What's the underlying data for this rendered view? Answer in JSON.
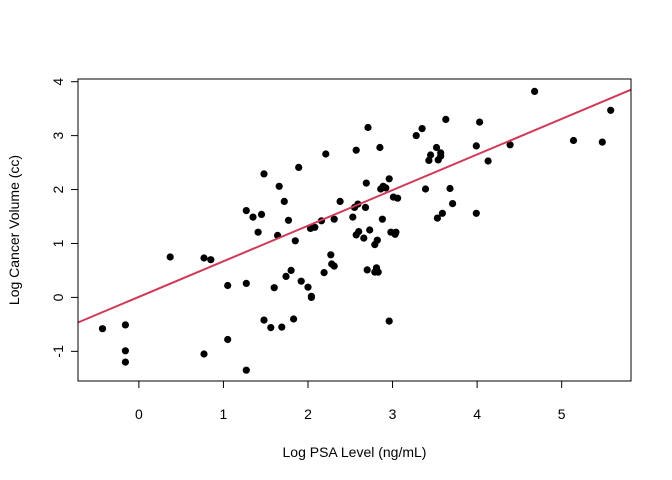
{
  "chart_data": {
    "type": "scatter",
    "title": "",
    "xlabel": "Log PSA Level (ng/mL)",
    "ylabel": "Log Cancer Volume (cc)",
    "xlim": [
      -0.72,
      5.82
    ],
    "ylim": [
      -1.55,
      4.05
    ],
    "grid": false,
    "legend": "none",
    "x_ticks": [
      0,
      1,
      2,
      3,
      4,
      5
    ],
    "y_ticks": [
      -1,
      0,
      1,
      2,
      3,
      4
    ],
    "x_tick_labels": [
      "0",
      "1",
      "2",
      "3",
      "4",
      "5"
    ],
    "y_tick_labels": [
      "-1",
      "0",
      "1",
      "2",
      "3",
      "4"
    ],
    "point_color": "#000000",
    "line_color": "#d03a57",
    "regression_line": {
      "intercept": 0.01,
      "slope": 0.66
    },
    "points": [
      {
        "x": -0.43,
        "y": -0.58
      },
      {
        "x": -0.16,
        "y": -0.51
      },
      {
        "x": -0.16,
        "y": -0.99
      },
      {
        "x": -0.16,
        "y": -1.2
      },
      {
        "x": 0.37,
        "y": 0.75
      },
      {
        "x": 0.77,
        "y": 0.73
      },
      {
        "x": 0.85,
        "y": 0.7
      },
      {
        "x": 0.77,
        "y": -1.05
      },
      {
        "x": 1.05,
        "y": 0.22
      },
      {
        "x": 1.05,
        "y": -0.78
      },
      {
        "x": 1.27,
        "y": 1.61
      },
      {
        "x": 1.35,
        "y": 1.49
      },
      {
        "x": 1.27,
        "y": 0.26
      },
      {
        "x": 1.27,
        "y": -1.35
      },
      {
        "x": 1.41,
        "y": 1.21
      },
      {
        "x": 1.45,
        "y": 1.54
      },
      {
        "x": 1.48,
        "y": 2.29
      },
      {
        "x": 1.48,
        "y": -0.42
      },
      {
        "x": 1.56,
        "y": -0.56
      },
      {
        "x": 1.6,
        "y": 0.18
      },
      {
        "x": 1.64,
        "y": 1.15
      },
      {
        "x": 1.66,
        "y": 2.06
      },
      {
        "x": 1.69,
        "y": -0.55
      },
      {
        "x": 1.72,
        "y": 1.78
      },
      {
        "x": 1.74,
        "y": 0.39
      },
      {
        "x": 1.77,
        "y": 1.43
      },
      {
        "x": 1.8,
        "y": 0.5
      },
      {
        "x": 1.83,
        "y": -0.4
      },
      {
        "x": 1.85,
        "y": 1.05
      },
      {
        "x": 1.89,
        "y": 2.41
      },
      {
        "x": 1.92,
        "y": 0.3
      },
      {
        "x": 2.0,
        "y": 0.19
      },
      {
        "x": 2.03,
        "y": 1.28
      },
      {
        "x": 2.04,
        "y": 0.0
      },
      {
        "x": 2.04,
        "y": 0.02
      },
      {
        "x": 2.08,
        "y": 1.3
      },
      {
        "x": 2.16,
        "y": 1.42
      },
      {
        "x": 2.19,
        "y": 0.46
      },
      {
        "x": 2.21,
        "y": 2.66
      },
      {
        "x": 2.27,
        "y": 0.79
      },
      {
        "x": 2.28,
        "y": 0.62
      },
      {
        "x": 2.31,
        "y": 1.45
      },
      {
        "x": 2.31,
        "y": 0.58
      },
      {
        "x": 2.38,
        "y": 1.78
      },
      {
        "x": 2.53,
        "y": 1.49
      },
      {
        "x": 2.55,
        "y": 1.67
      },
      {
        "x": 2.57,
        "y": 1.16
      },
      {
        "x": 2.57,
        "y": 2.73
      },
      {
        "x": 2.59,
        "y": 1.73
      },
      {
        "x": 2.6,
        "y": 1.22
      },
      {
        "x": 2.66,
        "y": 1.1
      },
      {
        "x": 2.68,
        "y": 1.67
      },
      {
        "x": 2.69,
        "y": 2.12
      },
      {
        "x": 2.7,
        "y": 0.51
      },
      {
        "x": 2.71,
        "y": 3.15
      },
      {
        "x": 2.73,
        "y": 1.25
      },
      {
        "x": 2.79,
        "y": 0.98
      },
      {
        "x": 2.79,
        "y": 0.47
      },
      {
        "x": 2.81,
        "y": 0.55
      },
      {
        "x": 2.82,
        "y": 1.06
      },
      {
        "x": 2.83,
        "y": 0.47
      },
      {
        "x": 2.85,
        "y": 2.78
      },
      {
        "x": 2.86,
        "y": 2.01
      },
      {
        "x": 2.88,
        "y": 1.45
      },
      {
        "x": 2.89,
        "y": 2.06
      },
      {
        "x": 2.92,
        "y": 2.03
      },
      {
        "x": 2.96,
        "y": -0.44
      },
      {
        "x": 2.96,
        "y": 2.2
      },
      {
        "x": 2.98,
        "y": 1.21
      },
      {
        "x": 3.01,
        "y": 1.86
      },
      {
        "x": 3.03,
        "y": 1.17
      },
      {
        "x": 3.04,
        "y": 1.21
      },
      {
        "x": 3.06,
        "y": 1.84
      },
      {
        "x": 3.28,
        "y": 3.0
      },
      {
        "x": 3.35,
        "y": 3.13
      },
      {
        "x": 3.39,
        "y": 2.01
      },
      {
        "x": 3.43,
        "y": 2.54
      },
      {
        "x": 3.45,
        "y": 2.64
      },
      {
        "x": 3.52,
        "y": 2.78
      },
      {
        "x": 3.53,
        "y": 1.47
      },
      {
        "x": 3.54,
        "y": 2.55
      },
      {
        "x": 3.57,
        "y": 2.68
      },
      {
        "x": 3.57,
        "y": 2.62
      },
      {
        "x": 3.59,
        "y": 1.56
      },
      {
        "x": 3.63,
        "y": 3.3
      },
      {
        "x": 3.68,
        "y": 2.02
      },
      {
        "x": 3.71,
        "y": 1.74
      },
      {
        "x": 3.99,
        "y": 2.81
      },
      {
        "x": 3.99,
        "y": 1.56
      },
      {
        "x": 4.03,
        "y": 3.25
      },
      {
        "x": 4.13,
        "y": 2.53
      },
      {
        "x": 4.39,
        "y": 2.83
      },
      {
        "x": 4.68,
        "y": 3.82
      },
      {
        "x": 5.14,
        "y": 2.91
      },
      {
        "x": 5.48,
        "y": 2.88
      },
      {
        "x": 5.58,
        "y": 3.47
      }
    ]
  }
}
